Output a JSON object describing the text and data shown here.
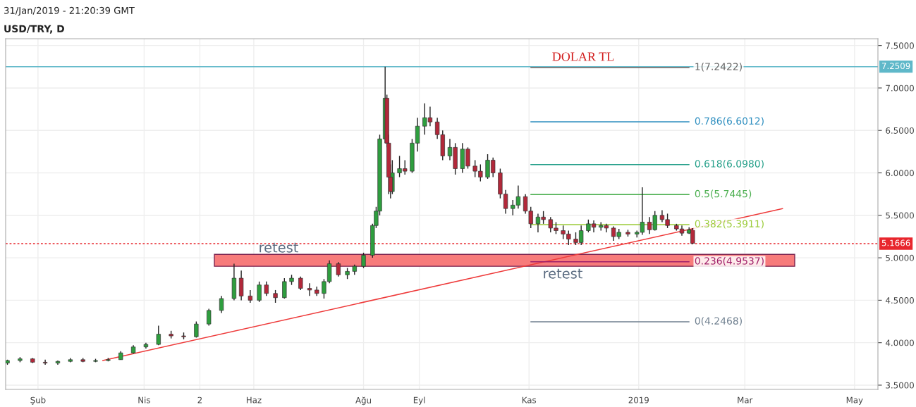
{
  "chart_data": {
    "type": "candlestick",
    "title": "USD/TRY, D",
    "annotations": [
      "31/Jan/2019 - 21:20:39 GMT",
      "DOLAR TL",
      "retest",
      "retest"
    ],
    "series": [
      {
        "color": "#2e9e3e",
        "x": [
          "2018-01-15",
          "2018-01-22",
          "2018-02-12",
          "2018-02-19",
          "2018-03-05",
          "2018-03-12",
          "2018-03-19",
          "2018-03-26",
          "2018-04-02",
          "2018-04-09",
          "2018-04-30",
          "2018-05-07",
          "2018-05-14",
          "2018-05-21",
          "2018-06-04",
          "2018-06-18",
          "2018-06-22",
          "2018-07-10",
          "2018-07-13",
          "2018-07-23",
          "2018-07-27",
          "2018-08-01",
          "2018-08-06",
          "2018-08-08",
          "2018-08-10",
          "2018-08-13",
          "2018-08-17",
          "2018-08-21",
          "2018-08-28",
          "2018-08-31",
          "2018-09-04",
          "2018-09-18",
          "2018-09-25",
          "2018-10-09",
          "2018-10-23",
          "2018-10-26",
          "2018-11-06",
          "2018-11-30",
          "2018-12-04",
          "2018-12-11",
          "2018-12-21",
          "2018-12-31",
          "2019-01-03",
          "2019-01-10",
          "2019-01-29"
        ],
        "ohlc": [
          [
            3.76,
            3.8,
            3.74,
            3.79
          ],
          [
            3.79,
            3.83,
            3.77,
            3.81
          ],
          [
            3.76,
            3.79,
            3.74,
            3.78
          ],
          [
            3.78,
            3.82,
            3.77,
            3.8
          ],
          [
            3.78,
            3.81,
            3.77,
            3.79
          ],
          [
            3.79,
            3.82,
            3.78,
            3.8
          ],
          [
            3.8,
            3.9,
            3.8,
            3.88
          ],
          [
            3.88,
            3.97,
            3.87,
            3.95
          ],
          [
            3.95,
            4.0,
            3.93,
            3.98
          ],
          [
            3.98,
            4.2,
            3.97,
            4.1
          ],
          [
            4.07,
            4.25,
            4.06,
            4.22
          ],
          [
            4.22,
            4.4,
            4.2,
            4.38
          ],
          [
            4.38,
            4.55,
            4.35,
            4.52
          ],
          [
            4.52,
            4.93,
            4.5,
            4.76
          ],
          [
            4.5,
            4.72,
            4.48,
            4.68
          ],
          [
            4.53,
            4.76,
            4.52,
            4.72
          ],
          [
            4.72,
            4.8,
            4.68,
            4.76
          ],
          [
            4.58,
            4.75,
            4.52,
            4.72
          ],
          [
            4.72,
            4.97,
            4.7,
            4.93
          ],
          [
            4.8,
            4.88,
            4.75,
            4.84
          ],
          [
            4.84,
            4.92,
            4.8,
            4.9
          ],
          [
            4.9,
            5.06,
            4.88,
            5.03
          ],
          [
            5.03,
            5.4,
            5.0,
            5.38
          ],
          [
            5.38,
            5.6,
            5.35,
            5.55
          ],
          [
            5.55,
            6.45,
            5.5,
            6.4
          ],
          [
            6.4,
            7.25,
            6.35,
            6.88
          ],
          [
            5.78,
            6.15,
            5.75,
            6.0
          ],
          [
            6.0,
            6.2,
            5.95,
            6.05
          ],
          [
            6.02,
            6.4,
            6.0,
            6.35
          ],
          [
            6.35,
            6.65,
            6.25,
            6.55
          ],
          [
            6.55,
            6.82,
            6.45,
            6.65
          ],
          [
            6.2,
            6.4,
            6.15,
            6.3
          ],
          [
            6.05,
            6.35,
            6.0,
            6.28
          ],
          [
            5.95,
            6.22,
            5.93,
            6.15
          ],
          [
            5.58,
            5.68,
            5.5,
            5.62
          ],
          [
            5.62,
            5.85,
            5.58,
            5.72
          ],
          [
            5.4,
            5.52,
            5.3,
            5.48
          ],
          [
            5.18,
            5.38,
            5.15,
            5.32
          ],
          [
            5.32,
            5.45,
            5.3,
            5.4
          ],
          [
            5.36,
            5.42,
            5.32,
            5.38
          ],
          [
            5.25,
            5.34,
            5.22,
            5.3
          ],
          [
            5.28,
            5.32,
            5.24,
            5.3
          ],
          [
            5.3,
            5.83,
            5.27,
            5.42
          ],
          [
            5.33,
            5.55,
            5.32,
            5.5
          ],
          [
            5.29,
            5.36,
            5.28,
            5.33
          ]
        ]
      },
      {
        "color": "#b2283a",
        "x": [
          "2018-01-29",
          "2018-02-05",
          "2018-02-26",
          "2018-04-16",
          "2018-04-23",
          "2018-05-25",
          "2018-05-30",
          "2018-06-08",
          "2018-06-13",
          "2018-06-27",
          "2018-07-02",
          "2018-07-06",
          "2018-07-18",
          "2018-08-14",
          "2018-08-15",
          "2018-08-16",
          "2018-08-24",
          "2018-09-07",
          "2018-09-11",
          "2018-09-14",
          "2018-09-21",
          "2018-09-28",
          "2018-10-02",
          "2018-10-05",
          "2018-10-12",
          "2018-10-16",
          "2018-10-19",
          "2018-10-30",
          "2018-11-02",
          "2018-11-09",
          "2018-11-13",
          "2018-11-16",
          "2018-11-20",
          "2018-11-23",
          "2018-11-27",
          "2018-12-07",
          "2018-12-14",
          "2018-12-18",
          "2018-12-26",
          "2019-01-07",
          "2019-01-14",
          "2019-01-17",
          "2019-01-22",
          "2019-01-25",
          "2019-01-31"
        ],
        "ohlc": [
          [
            3.81,
            3.82,
            3.76,
            3.77
          ],
          [
            3.77,
            3.8,
            3.74,
            3.76
          ],
          [
            3.8,
            3.82,
            3.77,
            3.78
          ],
          [
            4.1,
            4.14,
            4.05,
            4.08
          ],
          [
            4.08,
            4.12,
            4.04,
            4.07
          ],
          [
            4.76,
            4.85,
            4.5,
            4.55
          ],
          [
            4.55,
            4.62,
            4.47,
            4.5
          ],
          [
            4.68,
            4.72,
            4.55,
            4.58
          ],
          [
            4.58,
            4.62,
            4.47,
            4.53
          ],
          [
            4.76,
            4.78,
            4.62,
            4.64
          ],
          [
            4.64,
            4.7,
            4.55,
            4.62
          ],
          [
            4.62,
            4.66,
            4.55,
            4.58
          ],
          [
            4.93,
            4.95,
            4.78,
            4.8
          ],
          [
            6.88,
            6.92,
            6.3,
            6.35
          ],
          [
            6.35,
            6.45,
            5.75,
            5.95
          ],
          [
            5.95,
            6.1,
            5.7,
            5.78
          ],
          [
            6.05,
            6.15,
            5.98,
            6.02
          ],
          [
            6.65,
            6.78,
            6.55,
            6.6
          ],
          [
            6.6,
            6.65,
            6.4,
            6.45
          ],
          [
            6.45,
            6.5,
            6.15,
            6.2
          ],
          [
            6.3,
            6.35,
            5.98,
            6.05
          ],
          [
            6.28,
            6.3,
            6.05,
            6.08
          ],
          [
            6.08,
            6.15,
            5.95,
            6.02
          ],
          [
            6.02,
            6.1,
            5.9,
            5.95
          ],
          [
            6.15,
            6.18,
            5.95,
            6.0
          ],
          [
            6.0,
            6.05,
            5.7,
            5.75
          ],
          [
            5.75,
            5.8,
            5.52,
            5.58
          ],
          [
            5.72,
            5.75,
            5.52,
            5.55
          ],
          [
            5.55,
            5.6,
            5.35,
            5.4
          ],
          [
            5.48,
            5.55,
            5.4,
            5.45
          ],
          [
            5.45,
            5.48,
            5.3,
            5.35
          ],
          [
            5.35,
            5.42,
            5.28,
            5.32
          ],
          [
            5.32,
            5.38,
            5.22,
            5.28
          ],
          [
            5.28,
            5.32,
            5.15,
            5.22
          ],
          [
            5.22,
            5.3,
            5.15,
            5.18
          ],
          [
            5.4,
            5.44,
            5.3,
            5.36
          ],
          [
            5.38,
            5.4,
            5.3,
            5.35
          ],
          [
            5.35,
            5.37,
            5.2,
            5.25
          ],
          [
            5.3,
            5.33,
            5.25,
            5.28
          ],
          [
            5.42,
            5.48,
            5.28,
            5.33
          ],
          [
            5.5,
            5.56,
            5.42,
            5.45
          ],
          [
            5.45,
            5.52,
            5.35,
            5.38
          ],
          [
            5.38,
            5.4,
            5.32,
            5.34
          ],
          [
            5.34,
            5.38,
            5.26,
            5.29
          ],
          [
            5.33,
            5.35,
            5.16,
            5.17
          ]
        ]
      },
      {
        "type": "line",
        "color": "#ee3a3a",
        "x": [
          "2018-03-09",
          "2019-03-22"
        ],
        "values": [
          3.79,
          5.58
        ]
      },
      {
        "type": "line",
        "name": "1(7.2422)",
        "color": "#666666",
        "x": [
          "2018-11-02",
          "2019-01-29"
        ],
        "values": [
          7.2422,
          7.2422
        ]
      },
      {
        "type": "line",
        "name": "0.786(6.6012)",
        "color": "#2f8fc0",
        "x": [
          "2018-11-02",
          "2019-01-29"
        ],
        "values": [
          6.6012,
          6.6012
        ]
      },
      {
        "type": "line",
        "name": "0.618(6.0980)",
        "color": "#26a08a",
        "x": [
          "2018-11-02",
          "2019-01-29"
        ],
        "values": [
          6.098,
          6.098
        ]
      },
      {
        "type": "line",
        "name": "0.5(5.7445)",
        "color": "#4caf50",
        "x": [
          "2018-11-02",
          "2019-01-29"
        ],
        "values": [
          5.7445,
          5.7445
        ]
      },
      {
        "type": "line",
        "name": "0.382(5.3911)",
        "color": "#9ccc3a",
        "x": [
          "2018-11-02",
          "2019-01-29"
        ],
        "values": [
          5.3911,
          5.3911
        ]
      },
      {
        "type": "line",
        "name": "0.236(4.9537)",
        "color": "#a0206a",
        "x": [
          "2018-11-02",
          "2019-01-29"
        ],
        "values": [
          4.9537,
          4.9537
        ]
      },
      {
        "type": "line",
        "name": "0(4.2468)",
        "color": "#708090",
        "x": [
          "2018-11-02",
          "2019-01-29"
        ],
        "values": [
          4.2468,
          4.2468
        ]
      }
    ],
    "ref_lines": [
      {
        "axis": "y",
        "value": 7.2509,
        "label": "7.2509",
        "color": "#5fb8c9",
        "line_style": "solid"
      },
      {
        "axis": "y",
        "value": 5.1666,
        "label": "5.1666",
        "color": "#e8262d",
        "line_style": "dotted"
      }
    ],
    "bands": [
      {
        "axis": "y",
        "from": 4.9,
        "to": 5.04,
        "color": "#f77b7b"
      }
    ],
    "xlim": [
      "2018-01-14",
      "2019-05-14"
    ],
    "xticks": [
      {
        "value": "2018-02-01",
        "label": "Şub"
      },
      {
        "value": "2018-04-01",
        "label": "Nis"
      },
      {
        "value": "2018-05-02",
        "label": "2"
      },
      {
        "value": "2018-06-01",
        "label": "Haz"
      },
      {
        "value": "2018-08-01",
        "label": "Ağu"
      },
      {
        "value": "2018-09-01",
        "label": "Eyl"
      },
      {
        "value": "2018-11-01",
        "label": "Kas"
      },
      {
        "value": "2019-01-01",
        "label": "2019"
      },
      {
        "value": "2019-03-01",
        "label": "Mar"
      },
      {
        "value": "2019-05-01",
        "label": "May"
      }
    ],
    "ylim": [
      3.45,
      7.58
    ],
    "yticks": [
      {
        "value": 3.5,
        "label": "3.5000"
      },
      {
        "value": 4.0,
        "label": "4.0000"
      },
      {
        "value": 4.5,
        "label": "4.5000"
      },
      {
        "value": 5.0,
        "label": "5.0000"
      },
      {
        "value": 5.5,
        "label": "5.5000"
      },
      {
        "value": 6.0,
        "label": "6.0000"
      },
      {
        "value": 6.5,
        "label": "6.5000"
      },
      {
        "value": 7.0,
        "label": "7.0000"
      },
      {
        "value": 7.5,
        "label": "7.5000"
      }
    ],
    "grid": true,
    "legend": false
  }
}
